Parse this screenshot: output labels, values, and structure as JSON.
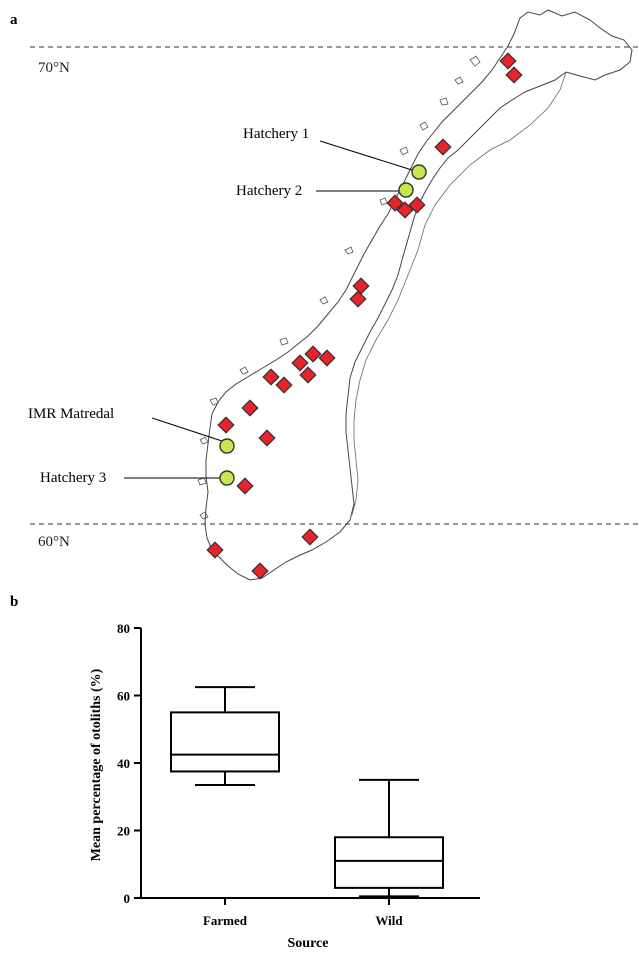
{
  "panels": {
    "a": "a",
    "b": "b"
  },
  "map": {
    "latitude_lines": [
      {
        "label": "70°N"
      },
      {
        "label": "60°N"
      }
    ],
    "hatcheries": [
      {
        "label": "Hatchery 1"
      },
      {
        "label": "Hatchery 2"
      },
      {
        "label": "IMR Matredal"
      },
      {
        "label": "Hatchery 3"
      }
    ],
    "colors": {
      "hatchery_fill": "#c6e84a",
      "river_fill": "#e8232a",
      "outline": "#333333"
    }
  },
  "chart_data": {
    "type": "boxplot",
    "xlabel": "Source",
    "ylabel": "Mean percentage of otoliths (%)",
    "ylim": [
      0,
      80
    ],
    "yticks": [
      "0",
      "20",
      "40",
      "60",
      "80"
    ],
    "categories": [
      "Farmed",
      "Wild"
    ],
    "boxes": [
      {
        "category": "Farmed",
        "min": 33.5,
        "q1": 37.5,
        "median": 42.5,
        "q3": 55,
        "max": 62.5
      },
      {
        "category": "Wild",
        "min": 0.5,
        "q1": 3,
        "median": 11,
        "q3": 18,
        "max": 35
      }
    ]
  }
}
